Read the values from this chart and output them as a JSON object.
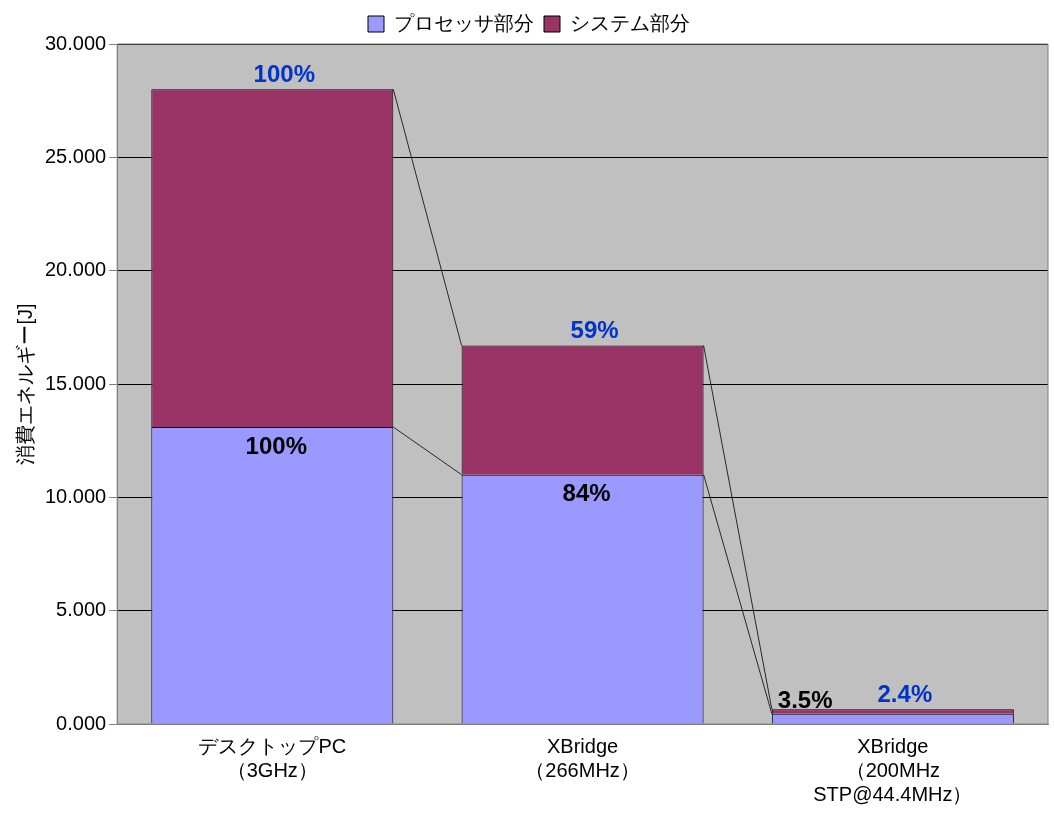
{
  "chart_data": {
    "type": "bar",
    "stacked": true,
    "ylabel": "消費エネルギー[J]",
    "categories": [
      "デスクトップPC\n（3GHz）",
      "XBridge\n（266MHz）",
      "XBridge\n（200MHz\nSTP@44.4MHz）"
    ],
    "series": [
      {
        "name": "プロセッサ部分",
        "color": "#9999ff",
        "values": [
          13.1,
          11.0,
          0.45
        ]
      },
      {
        "name": "システム部分",
        "color": "#993366",
        "values": [
          14.9,
          5.7,
          0.2
        ]
      }
    ],
    "annotations": [
      {
        "text": "100%",
        "x": "デスクトップPC\n（3GHz）",
        "y": 28.0
      },
      {
        "text": "59%",
        "x": "XBridge\n（266MHz）",
        "y": 16.7
      },
      {
        "text": "2.4%",
        "x": "XBridge\n（200MHz\nSTP@44.4MHz）",
        "y": 0.65
      },
      {
        "text": "100%",
        "x": "デスクトップPC\n（3GHz）",
        "y": 13.1
      },
      {
        "text": "84%",
        "x": "XBridge\n（266MHz）",
        "y": 11.0
      },
      {
        "text": "3.5%",
        "x": "XBridge\n（200MHz\nSTP@44.4MHz）",
        "y": 0.45
      }
    ],
    "ylim": [
      0,
      30
    ],
    "yticks": [
      {
        "value": 0,
        "label": "0.000"
      },
      {
        "value": 5,
        "label": "5.000"
      },
      {
        "value": 10,
        "label": "10.000"
      },
      {
        "value": 15,
        "label": "15.000"
      },
      {
        "value": 20,
        "label": "20.000"
      },
      {
        "value": 25,
        "label": "25.000"
      },
      {
        "value": 30,
        "label": "30.000"
      }
    ],
    "grid": "y",
    "legend": "top"
  }
}
